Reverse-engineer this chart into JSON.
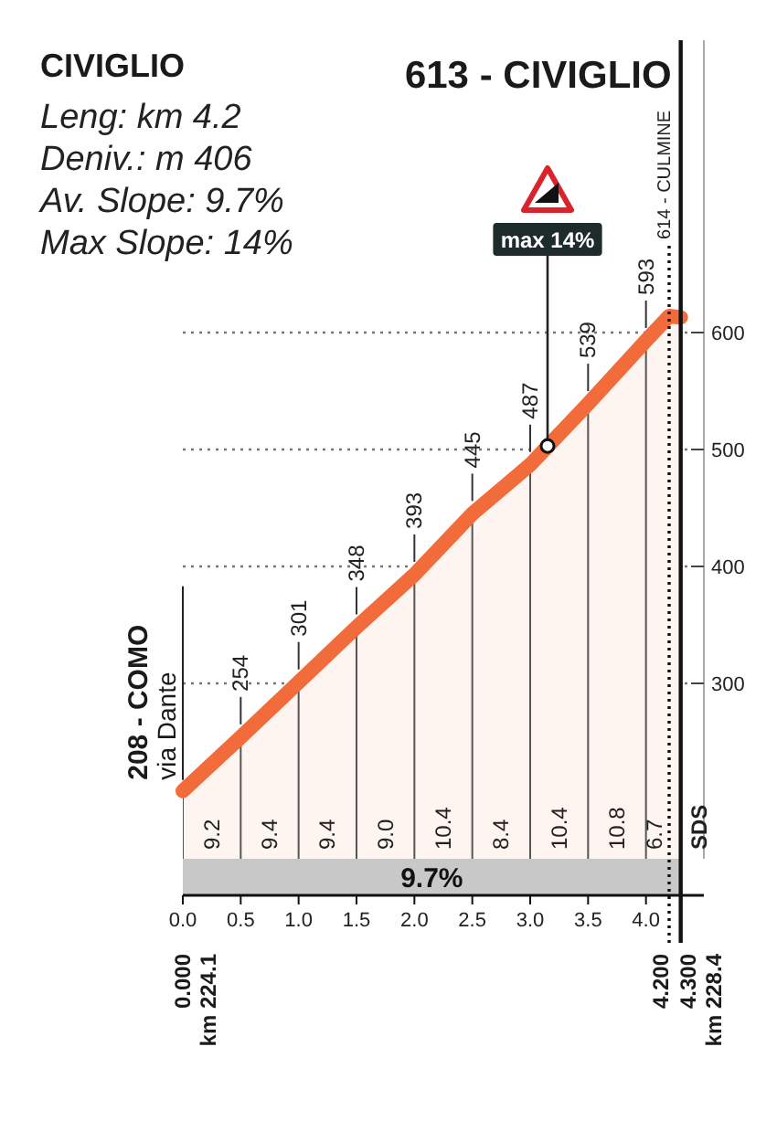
{
  "chart_data": {
    "type": "area",
    "title": "CIVIGLIO",
    "x": [
      0,
      0.5,
      1,
      1.5,
      2,
      2.5,
      3,
      3.5,
      4,
      4.2,
      4.3
    ],
    "values": [
      208,
      254,
      301,
      348,
      393,
      445,
      487,
      539,
      593,
      614,
      613
    ],
    "color": "#f26b3a",
    "value_labels": [
      "208 - COMO\nvia Dante",
      "254",
      "301",
      "348",
      "393",
      "445",
      "487",
      "539",
      "593",
      null,
      null
    ],
    "xlim": [
      0,
      4.5
    ],
    "xticks": [
      {
        "value": 0,
        "label": "0.0"
      },
      0.5,
      {
        "value": 1,
        "label": "1.0"
      },
      1.5,
      {
        "value": 2,
        "label": "2.0"
      },
      2.5,
      {
        "value": 3,
        "label": "3.0"
      },
      3.5,
      {
        "value": 4,
        "label": "4.0"
      }
    ],
    "ylim": [
      150,
      850
    ],
    "yticks": [
      300,
      400,
      500,
      600
    ],
    "grid": true,
    "ref_lines": [
      {
        "axis": "x",
        "value": 4.2,
        "label": "614 - CULMINE",
        "line_style": "dotted"
      },
      {
        "axis": "x",
        "value": 4.3,
        "label": "613 - CIVIGLIO"
      }
    ],
    "annotations": [
      "Leng: km 4.2",
      "Deniv.: m 406",
      "Av. Slope: 9.7%",
      "Max Slope: 14%",
      "9.2",
      "9.4",
      "9.4",
      "9.0",
      "10.4",
      "8.4",
      "10.4",
      "10.8",
      "6.7",
      "9.7%",
      "SDS",
      "0.000",
      "4.200",
      "4.300",
      "km 224.1",
      "km 228.4",
      {
        "text": "max 14%",
        "x": 3.15,
        "y": 503
      }
    ]
  }
}
